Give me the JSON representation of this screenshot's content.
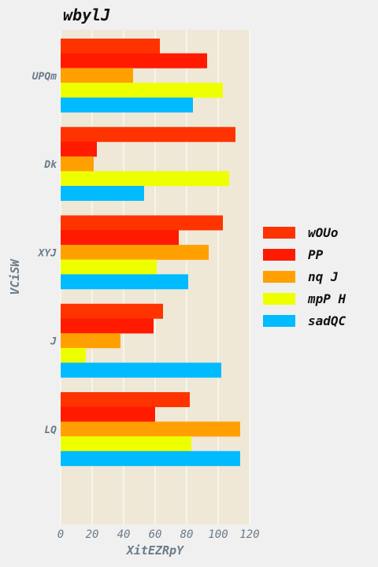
{
  "chart_data": {
    "type": "bar",
    "orientation": "horizontal",
    "title": "wbylJ",
    "xlabel": "XitEZRpY",
    "ylabel": "VCiSW",
    "xlim": [
      0,
      120
    ],
    "xticks": [
      0,
      20,
      40,
      60,
      80,
      100,
      120
    ],
    "grid": true,
    "legend_position": "right",
    "categories": [
      "UPQm",
      "Dk",
      "XYJ",
      "J",
      "LQ"
    ],
    "series": [
      {
        "name": "wOUo",
        "color": "#ff3300",
        "values": [
          63,
          111,
          103,
          65,
          82
        ]
      },
      {
        "name": "PP",
        "color": "#ff1a00",
        "values": [
          93,
          23,
          75,
          59,
          60
        ]
      },
      {
        "name": "nq J",
        "color": "#ffa000",
        "values": [
          46,
          21,
          94,
          38,
          114
        ]
      },
      {
        "name": "mpP H",
        "color": "#eeff00",
        "values": [
          103,
          107,
          61,
          16,
          83
        ]
      },
      {
        "name": "sadQC",
        "color": "#00bbff",
        "values": [
          84,
          53,
          81,
          102,
          114
        ]
      }
    ]
  }
}
